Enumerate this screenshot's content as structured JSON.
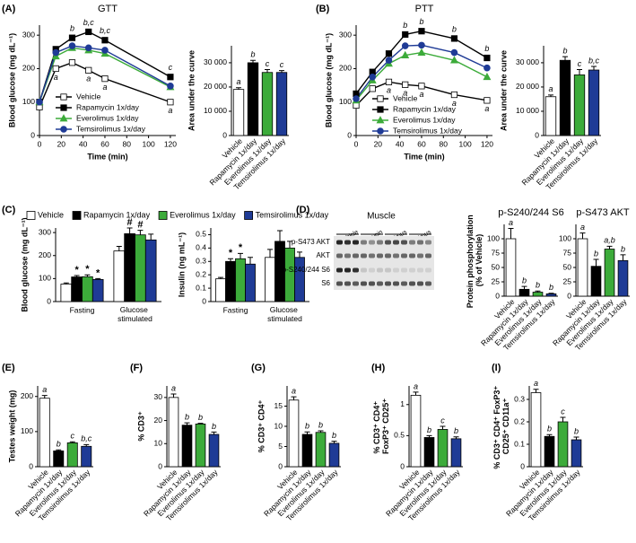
{
  "chart_data": [
    {
      "type": "line",
      "panel": "(A)",
      "title": "GTT",
      "xlabel": "Time (min)",
      "ylabel": "Blood glucose (mg dL⁻¹)",
      "x": [
        0,
        15,
        30,
        45,
        60,
        120
      ],
      "xlim": [
        0,
        125
      ],
      "xticks": [
        0,
        20,
        40,
        60,
        80,
        100,
        120
      ],
      "ylim": [
        0,
        330
      ],
      "yticks": [
        0,
        100,
        200,
        300
      ],
      "legend": "lower left",
      "series": [
        {
          "name": "Vehicle",
          "color": "#ffffff",
          "marker": "square",
          "values": [
            85,
            200,
            218,
            195,
            170,
            100
          ],
          "point_labels": [
            null,
            "a",
            null,
            "a",
            "a",
            "a"
          ]
        },
        {
          "name": "Rapamycin 1x/day",
          "color": "#000000",
          "marker": "square",
          "values": [
            100,
            258,
            292,
            310,
            285,
            175
          ],
          "point_labels": [
            null,
            null,
            "b",
            "b,c",
            "b,c",
            "c"
          ]
        },
        {
          "name": "Everolimus 1x/day",
          "color": "#3cab3a",
          "marker": "triangle",
          "values": [
            100,
            237,
            262,
            255,
            245,
            145
          ]
        },
        {
          "name": "Temsirolimus 1x/day",
          "color": "#1f3b96",
          "marker": "circle",
          "values": [
            100,
            248,
            268,
            262,
            255,
            148
          ]
        }
      ]
    },
    {
      "type": "bar",
      "ylabel": "Area under the curve",
      "categories": [
        "Vehicle",
        "Rapamycin 1x/day",
        "Everolimus 1x/day",
        "Temsirolimus 1x/day"
      ],
      "values": [
        19000,
        30000,
        26000,
        26000
      ],
      "errors": [
        700,
        1000,
        1200,
        800
      ],
      "letters": [
        "a",
        "b",
        "c",
        "c"
      ],
      "colors": [
        "#ffffff",
        "#000000",
        "#3cab3a",
        "#1f3b96"
      ],
      "ylim": [
        0,
        37000
      ],
      "yticks": [
        0,
        {
          "value": 10000,
          "label": "10 000"
        },
        {
          "value": 20000,
          "label": "20 000"
        },
        {
          "value": 30000,
          "label": "30 000"
        }
      ]
    },
    {
      "type": "line",
      "panel": "(B)",
      "title": "PTT",
      "xlabel": "Time (min)",
      "ylabel": "Blood glucose (mg dL⁻¹)",
      "x": [
        0,
        15,
        30,
        45,
        60,
        90,
        120
      ],
      "xlim": [
        0,
        125
      ],
      "xticks": [
        0,
        20,
        40,
        60,
        80,
        100,
        120
      ],
      "ylim": [
        0,
        330
      ],
      "yticks": [
        0,
        100,
        200,
        300
      ],
      "legend": "lower left",
      "series": [
        {
          "name": "Vehicle",
          "color": "#ffffff",
          "marker": "square",
          "values": [
            90,
            140,
            160,
            152,
            148,
            122,
            105
          ],
          "point_labels": [
            null,
            null,
            "a",
            "a",
            "a",
            "a",
            "a"
          ]
        },
        {
          "name": "Rapamycin 1x/day",
          "color": "#000000",
          "marker": "square",
          "values": [
            125,
            190,
            245,
            302,
            312,
            290,
            232
          ],
          "point_labels": [
            null,
            null,
            null,
            "b",
            "b",
            "b",
            "b"
          ]
        },
        {
          "name": "Everolimus 1x/day",
          "color": "#3cab3a",
          "marker": "triangle",
          "values": [
            105,
            165,
            215,
            240,
            248,
            225,
            175
          ]
        },
        {
          "name": "Temsirolimus 1x/day",
          "color": "#1f3b96",
          "marker": "circle",
          "values": [
            110,
            175,
            225,
            268,
            270,
            248,
            202
          ]
        }
      ]
    },
    {
      "type": "bar",
      "ylabel": "Area under the curve",
      "categories": [
        "Vehicle",
        "Rapamycin 1x/day",
        "Everolimus 1x/day",
        "Temsirolimus 1x/day"
      ],
      "values": [
        16000,
        31000,
        25000,
        27000
      ],
      "errors": [
        700,
        1500,
        2200,
        1500
      ],
      "letters": [
        "a",
        "b",
        "c",
        "b,c"
      ],
      "colors": [
        "#ffffff",
        "#000000",
        "#3cab3a",
        "#1f3b96"
      ],
      "ylim": [
        0,
        37000
      ],
      "yticks": [
        0,
        {
          "value": 10000,
          "label": "10 000"
        },
        {
          "value": 20000,
          "label": "20 000"
        },
        {
          "value": 30000,
          "label": "30 000"
        }
      ]
    },
    {
      "type": "grouped_bar",
      "panel": "(C)",
      "ylabel": "Blood glucose (mg dL⁻¹)",
      "categories": [
        "Fasting",
        "Glucose stimulated"
      ],
      "ylim": [
        0,
        320
      ],
      "yticks": [
        0,
        100,
        200,
        300
      ],
      "legend": "top",
      "series": [
        {
          "name": "Vehicle",
          "color": "#ffffff",
          "values": [
            76,
            220
          ],
          "errors": [
            5,
            20
          ]
        },
        {
          "name": "Rapamycin 1x/day",
          "color": "#000000",
          "values": [
            107,
            295
          ],
          "errors": [
            6,
            25
          ],
          "marks": [
            "*",
            "#"
          ]
        },
        {
          "name": "Everolimus 1x/day",
          "color": "#3cab3a",
          "values": [
            108,
            290
          ],
          "errors": [
            8,
            20
          ],
          "marks": [
            "*",
            "#"
          ]
        },
        {
          "name": "Temsirolimus 1x/day",
          "color": "#1f3b96",
          "values": [
            96,
            268
          ],
          "errors": [
            4,
            25
          ],
          "marks": [
            "*",
            null
          ]
        }
      ]
    },
    {
      "type": "grouped_bar",
      "ylabel": "Insulin (ng mL⁻¹)",
      "categories": [
        "Fasting",
        "Glucose stimulated"
      ],
      "ylim": [
        0,
        0.55
      ],
      "yticks": [
        0,
        0.1,
        0.2,
        0.3,
        0.4,
        0.5
      ],
      "series": [
        {
          "color": "#ffffff",
          "values": [
            0.17,
            0.33
          ],
          "errors": [
            0.01,
            0.06
          ]
        },
        {
          "color": "#000000",
          "values": [
            0.3,
            0.45
          ],
          "errors": [
            0.02,
            0.08
          ],
          "marks": [
            "*",
            null
          ]
        },
        {
          "color": "#3cab3a",
          "values": [
            0.32,
            0.4
          ],
          "errors": [
            0.04,
            0.05
          ],
          "marks": [
            "*",
            null
          ]
        },
        {
          "color": "#1f3b96",
          "values": [
            0.28,
            0.33
          ],
          "errors": [
            0.05,
            0.04
          ]
        }
      ]
    },
    {
      "type": "bar",
      "panel": "(D)",
      "title": "p-S240/244 S6",
      "ylabel": "Protein phosphorylation (% of Vehicle)",
      "categories": [
        "Vehicle",
        "Rapamycin 1x/day",
        "Everolimus 1x/day",
        "Temsirolimus 1x/day"
      ],
      "values": [
        100,
        12,
        7,
        4
      ],
      "errors": [
        18,
        5,
        2,
        1
      ],
      "letters": [
        "a",
        "b",
        "b",
        "b"
      ],
      "colors": [
        "#ffffff",
        "#000000",
        "#3cab3a",
        "#1f3b96"
      ],
      "ylim": [
        0,
        125
      ],
      "yticks": [
        0,
        25,
        50,
        75,
        100
      ]
    },
    {
      "type": "bar",
      "title": "p-S473 AKT",
      "categories": [
        "Vehicle",
        "Rapamycin 1x/day",
        "Everolimus 1x/day",
        "Temsirolimus 1x/day"
      ],
      "values": [
        100,
        52,
        82,
        62
      ],
      "errors": [
        10,
        12,
        5,
        10
      ],
      "letters": [
        "a",
        "b",
        "a,b",
        "b"
      ],
      "colors": [
        "#ffffff",
        "#000000",
        "#3cab3a",
        "#1f3b96"
      ],
      "ylim": [
        0,
        125
      ],
      "yticks": [
        0,
        25,
        50,
        75,
        100
      ]
    },
    {
      "type": "bar",
      "panel": "(E)",
      "ylabel": "Testes weight (mg)",
      "categories": [
        "Vehicle",
        "Rapamycin 1x/day",
        "Everolimus 1x/day",
        "Temsirolimus 1x/day"
      ],
      "values": [
        195,
        45,
        68,
        58
      ],
      "errors": [
        8,
        3,
        3,
        5
      ],
      "letters": [
        "a",
        "b",
        "c",
        "b,c"
      ],
      "colors": [
        "#ffffff",
        "#000000",
        "#3cab3a",
        "#1f3b96"
      ],
      "ylim": [
        0,
        230
      ],
      "yticks": [
        0,
        100,
        200
      ]
    },
    {
      "type": "bar",
      "panel": "(F)",
      "ylabel": "% CD3⁺",
      "categories": [
        "Vehicle",
        "Rapamycin 1x/day",
        "Everolimus 1x/day",
        "Temsirolimus 1x/day"
      ],
      "values": [
        30,
        18,
        18.5,
        14
      ],
      "errors": [
        1.5,
        1,
        0.3,
        1
      ],
      "letters": [
        "a",
        "b",
        "b",
        "b"
      ],
      "colors": [
        "#ffffff",
        "#000000",
        "#3cab3a",
        "#1f3b96"
      ],
      "ylim": [
        0,
        35
      ],
      "yticks": [
        0,
        10,
        20,
        30
      ]
    },
    {
      "type": "bar",
      "panel": "(G)",
      "ylabel": "% CD3⁺ CD4⁺",
      "categories": [
        "Vehicle",
        "Rapamycin 1x/day",
        "Everolimus 1x/day",
        "Temsirolimus 1x/day"
      ],
      "values": [
        16.5,
        8,
        8.5,
        5.8
      ],
      "errors": [
        0.8,
        0.6,
        0.4,
        0.5
      ],
      "letters": [
        "a",
        "b",
        "b",
        "b"
      ],
      "colors": [
        "#ffffff",
        "#000000",
        "#3cab3a",
        "#1f3b96"
      ],
      "ylim": [
        0,
        20
      ],
      "yticks": [
        0,
        5,
        10,
        15
      ]
    },
    {
      "type": "bar",
      "panel": "(H)",
      "ylabel": "% CD3⁺ CD4⁺ FoxP3⁺ CD25⁺",
      "categories": [
        "Vehicle",
        "Rapamycin 1x/day",
        "Everolimus 1x/day",
        "Temsirolimus 1x/day"
      ],
      "values": [
        1.15,
        0.47,
        0.6,
        0.45
      ],
      "errors": [
        0.05,
        0.03,
        0.05,
        0.03
      ],
      "letters": [
        "a",
        "b",
        "c",
        "b"
      ],
      "colors": [
        "#ffffff",
        "#000000",
        "#3cab3a",
        "#1f3b96"
      ],
      "ylim": [
        0,
        1.3
      ],
      "yticks": [
        0,
        0.5,
        1
      ]
    },
    {
      "type": "bar",
      "panel": "(I)",
      "ylabel": "% CD3⁺ CD4⁺ FoxP3⁺ CD25⁺ CD11a⁺",
      "categories": [
        "Vehicle",
        "Rapamycin 1x/day",
        "Everolimus 1x/day",
        "Temsirolimus 1x/day"
      ],
      "values": [
        0.33,
        0.135,
        0.2,
        0.12
      ],
      "errors": [
        0.015,
        0.008,
        0.02,
        0.012
      ],
      "letters": [
        "a",
        "b",
        "c",
        "b"
      ],
      "colors": [
        "#ffffff",
        "#000000",
        "#3cab3a",
        "#1f3b96"
      ],
      "ylim": [
        0,
        0.36
      ],
      "yticks": [
        0,
        0.1,
        0.2,
        0.3
      ]
    }
  ],
  "blot": {
    "title": "Muscle",
    "groups": [
      "Vehicle",
      "Rapamycin",
      "Everolimus",
      "Temsirolimus"
    ],
    "rows": [
      "p-S473 AKT",
      "AKT",
      "p-S240/244 S6",
      "S6"
    ]
  }
}
